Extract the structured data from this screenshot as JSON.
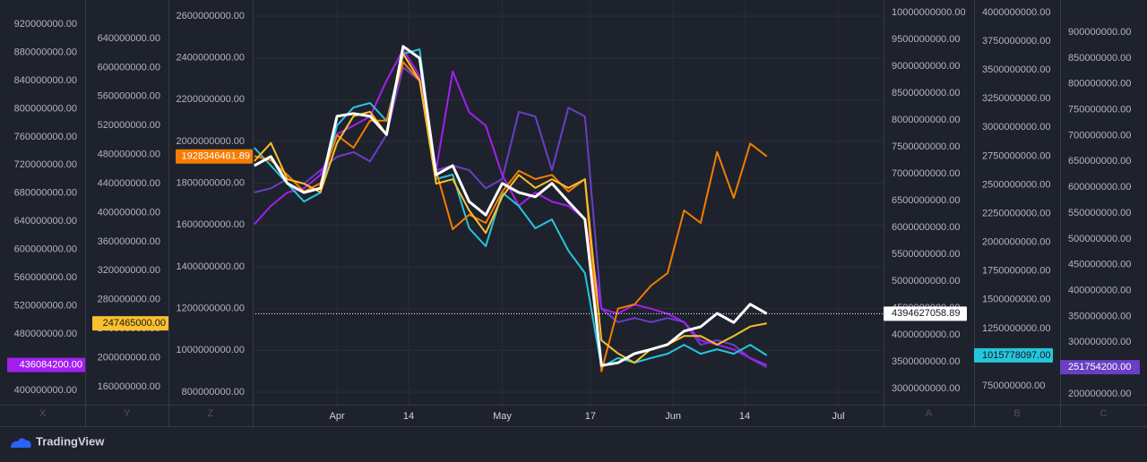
{
  "chart_data": {
    "type": "line",
    "x": [
      76,
      79,
      82,
      85,
      88,
      91,
      94,
      97,
      100,
      103,
      106,
      109,
      112,
      115,
      118,
      121,
      124,
      127,
      130,
      133,
      136,
      139,
      142,
      145,
      148,
      151,
      154,
      157,
      160,
      163,
      166,
      169
    ],
    "xlim": [
      75.7,
      190.2
    ],
    "xticks": [
      {
        "value": 91,
        "label": "Apr"
      },
      {
        "value": 104,
        "label": "14"
      },
      {
        "value": 121,
        "label": "May"
      },
      {
        "value": 137,
        "label": "17"
      },
      {
        "value": 152,
        "label": "Jun"
      },
      {
        "value": 165,
        "label": "14"
      },
      {
        "value": 182,
        "label": "Jul"
      }
    ],
    "grid": true,
    "grid_axis": "Z",
    "axes": [
      {
        "label": "X",
        "side": "left",
        "lim": [
          379700000,
          944200000
        ],
        "ticks": [
          {
            "value": 920000000,
            "label": "920000000.00"
          },
          {
            "value": 880000000,
            "label": "880000000.00"
          },
          {
            "value": 840000000,
            "label": "840000000.00"
          },
          {
            "value": 800000000,
            "label": "800000000.00"
          },
          {
            "value": 760000000,
            "label": "760000000.00"
          },
          {
            "value": 720000000,
            "label": "720000000.00"
          },
          {
            "value": 680000000,
            "label": "680000000.00"
          },
          {
            "value": 640000000,
            "label": "640000000.00"
          },
          {
            "value": 600000000,
            "label": "600000000.00"
          },
          {
            "value": 560000000,
            "label": "560000000.00"
          },
          {
            "value": 520000000,
            "label": "520000000.00"
          },
          {
            "value": 480000000,
            "label": "480000000.00"
          },
          {
            "value": 440000000,
            "label": "440000000.00"
          },
          {
            "value": 400000000,
            "label": "400000000.00"
          }
        ]
      },
      {
        "label": "Y",
        "side": "left",
        "lim": [
          135300000,
          683200000
        ],
        "ticks": [
          {
            "value": 640000000,
            "label": "640000000.00"
          },
          {
            "value": 600000000,
            "label": "600000000.00"
          },
          {
            "value": 560000000,
            "label": "560000000.00"
          },
          {
            "value": 520000000,
            "label": "520000000.00"
          },
          {
            "value": 480000000,
            "label": "480000000.00"
          },
          {
            "value": 440000000,
            "label": "440000000.00"
          },
          {
            "value": 400000000,
            "label": "400000000.00"
          },
          {
            "value": 360000000,
            "label": "360000000.00"
          },
          {
            "value": 320000000,
            "label": "320000000.00"
          },
          {
            "value": 280000000,
            "label": "280000000.00"
          },
          {
            "value": 240000000,
            "label": "240000000.00"
          },
          {
            "value": 200000000,
            "label": "200000000.00"
          },
          {
            "value": 160000000,
            "label": "160000000.00"
          }
        ]
      },
      {
        "label": "Z",
        "side": "left",
        "lim": [
          740000000,
          2642900000
        ],
        "ticks": [
          {
            "value": 2600000000,
            "label": "2600000000.00"
          },
          {
            "value": 2400000000,
            "label": "2400000000.00"
          },
          {
            "value": 2200000000,
            "label": "2200000000.00"
          },
          {
            "value": 2000000000,
            "label": "2000000000.00"
          },
          {
            "value": 1800000000,
            "label": "1800000000.00"
          },
          {
            "value": 1600000000,
            "label": "1600000000.00"
          },
          {
            "value": 1400000000,
            "label": "1400000000.00"
          },
          {
            "value": 1200000000,
            "label": "1200000000.00"
          },
          {
            "value": 1000000000,
            "label": "1000000000.00"
          },
          {
            "value": 800000000,
            "label": "800000000.00"
          }
        ]
      },
      {
        "label": "A",
        "side": "right",
        "lim": [
          2700000000,
          10100000000
        ],
        "ticks": [
          {
            "value": 10000000000,
            "label": "10000000000.00"
          },
          {
            "value": 9500000000,
            "label": "9500000000.00"
          },
          {
            "value": 9000000000,
            "label": "9000000000.00"
          },
          {
            "value": 8500000000,
            "label": "8500000000.00"
          },
          {
            "value": 8000000000,
            "label": "8000000000.00"
          },
          {
            "value": 7500000000,
            "label": "7500000000.00"
          },
          {
            "value": 7000000000,
            "label": "7000000000.00"
          },
          {
            "value": 6500000000,
            "label": "6500000000.00"
          },
          {
            "value": 6000000000,
            "label": "6000000000.00"
          },
          {
            "value": 5500000000,
            "label": "5500000000.00"
          },
          {
            "value": 5000000000,
            "label": "5000000000.00"
          },
          {
            "value": 4500000000,
            "label": "4500000000.00"
          },
          {
            "value": 4000000000,
            "label": "4000000000.00"
          },
          {
            "value": 3500000000,
            "label": "3500000000.00"
          },
          {
            "value": 3000000000,
            "label": "3000000000.00"
          }
        ]
      },
      {
        "label": "B",
        "side": "right",
        "lim": [
          586300000,
          4046800000
        ],
        "ticks": [
          {
            "value": 4000000000,
            "label": "4000000000.00"
          },
          {
            "value": 3750000000,
            "label": "3750000000.00"
          },
          {
            "value": 3500000000,
            "label": "3500000000.00"
          },
          {
            "value": 3250000000,
            "label": "3250000000.00"
          },
          {
            "value": 3000000000,
            "label": "3000000000.00"
          },
          {
            "value": 2750000000,
            "label": "2750000000.00"
          },
          {
            "value": 2500000000,
            "label": "2500000000.00"
          },
          {
            "value": 2250000000,
            "label": "2250000000.00"
          },
          {
            "value": 2000000000,
            "label": "2000000000.00"
          },
          {
            "value": 1750000000,
            "label": "1750000000.00"
          },
          {
            "value": 1500000000,
            "label": "1500000000.00"
          },
          {
            "value": 1250000000,
            "label": "1250000000.00"
          },
          {
            "value": 1000000000,
            "label": "1000000000.00"
          },
          {
            "value": 750000000,
            "label": "750000000.00"
          }
        ]
      },
      {
        "label": "C",
        "side": "right",
        "lim": [
          179200000,
          948500000
        ],
        "ticks": [
          {
            "value": 900000000,
            "label": "900000000.00"
          },
          {
            "value": 850000000,
            "label": "850000000.00"
          },
          {
            "value": 800000000,
            "label": "800000000.00"
          },
          {
            "value": 750000000,
            "label": "750000000.00"
          },
          {
            "value": 700000000,
            "label": "700000000.00"
          },
          {
            "value": 650000000,
            "label": "650000000.00"
          },
          {
            "value": 600000000,
            "label": "600000000.00"
          },
          {
            "value": 550000000,
            "label": "550000000.00"
          },
          {
            "value": 500000000,
            "label": "500000000.00"
          },
          {
            "value": 450000000,
            "label": "450000000.00"
          },
          {
            "value": 400000000,
            "label": "400000000.00"
          },
          {
            "value": 350000000,
            "label": "350000000.00"
          },
          {
            "value": 300000000,
            "label": "300000000.00"
          },
          {
            "value": 250000000,
            "label": "250000000.00"
          },
          {
            "value": 200000000,
            "label": "200000000.00"
          }
        ]
      }
    ],
    "series": [
      {
        "axis": "C",
        "color": "#6a3fc4",
        "values": [
          590000000,
          598000000,
          616000000,
          607000000,
          633000000,
          659000000,
          668000000,
          650000000,
          702000000,
          832000000,
          806000000,
          633000000,
          642000000,
          633000000,
          598000000,
          616000000,
          746000000,
          737000000,
          633000000,
          754000000,
          737000000,
          365000000,
          339000000,
          347000000,
          339000000,
          347000000,
          339000000,
          295000000,
          304000000,
          295000000,
          269000000,
          251754200
        ],
        "value_labels": [
          null,
          null,
          null,
          null,
          null,
          null,
          null,
          null,
          null,
          null,
          null,
          null,
          null,
          null,
          null,
          null,
          null,
          null,
          null,
          null,
          null,
          null,
          null,
          null,
          null,
          null,
          null,
          null,
          null,
          null,
          null,
          "251754200.00"
        ]
      },
      {
        "axis": "X",
        "color": "#a31ff0",
        "values": [
          636000000,
          662000000,
          681000000,
          687000000,
          706000000,
          764000000,
          776000000,
          789000000,
          840000000,
          884000000,
          846000000,
          713000000,
          853000000,
          795000000,
          776000000,
          706000000,
          662000000,
          681000000,
          668000000,
          662000000,
          643000000,
          516000000,
          509000000,
          522000000,
          516000000,
          509000000,
          497000000,
          471000000,
          465000000,
          458000000,
          446000000,
          436084200
        ],
        "value_labels": [
          null,
          null,
          null,
          null,
          null,
          null,
          null,
          null,
          null,
          null,
          null,
          null,
          null,
          null,
          null,
          null,
          null,
          null,
          null,
          null,
          null,
          null,
          null,
          null,
          null,
          null,
          null,
          null,
          null,
          null,
          null,
          "436084200.00"
        ]
      },
      {
        "axis": "B",
        "color": "#26c6da",
        "values": [
          2823000000,
          2667000000,
          2511000000,
          2355000000,
          2433000000,
          3018000000,
          3174000000,
          3213000000,
          3057000000,
          3641000000,
          3680000000,
          2550000000,
          2589000000,
          2122000000,
          1966000000,
          2433000000,
          2316000000,
          2122000000,
          2200000000,
          1927000000,
          1732000000,
          914000000,
          992000000,
          953000000,
          992000000,
          1030000000,
          1108000000,
          1030000000,
          1069000000,
          1030000000,
          1108000000,
          1015778097
        ],
        "value_labels": [
          null,
          null,
          null,
          null,
          null,
          null,
          null,
          null,
          null,
          null,
          null,
          null,
          null,
          null,
          null,
          null,
          null,
          null,
          null,
          null,
          null,
          null,
          null,
          null,
          null,
          null,
          null,
          null,
          null,
          null,
          null,
          "1015778097.00"
        ]
      },
      {
        "axis": "Z",
        "color": "#f57c00",
        "values": [
          1930000000,
          1910000000,
          1840000000,
          1760000000,
          1800000000,
          2030000000,
          1970000000,
          2100000000,
          2100000000,
          2380000000,
          2290000000,
          1860000000,
          1580000000,
          1650000000,
          1610000000,
          1760000000,
          1860000000,
          1820000000,
          1840000000,
          1760000000,
          1820000000,
          900000000,
          1200000000,
          1220000000,
          1310000000,
          1370000000,
          1670000000,
          1610000000,
          1950000000,
          1730000000,
          1990000000,
          1928346461.89
        ],
        "value_labels": [
          null,
          null,
          null,
          null,
          null,
          null,
          null,
          null,
          null,
          null,
          null,
          null,
          null,
          null,
          null,
          null,
          null,
          null,
          null,
          null,
          null,
          null,
          null,
          null,
          null,
          null,
          null,
          null,
          null,
          null,
          null,
          "1928346461.89"
        ]
      },
      {
        "axis": "Y",
        "color": "#fbc02d",
        "values": [
          471000000,
          496000000,
          446000000,
          440000000,
          428000000,
          496000000,
          533000000,
          539000000,
          508000000,
          619000000,
          582000000,
          440000000,
          446000000,
          403000000,
          372000000,
          422000000,
          452000000,
          434000000,
          446000000,
          434000000,
          446000000,
          224000000,
          206000000,
          193000000,
          212000000,
          218000000,
          230000000,
          230000000,
          218000000,
          230000000,
          243000000,
          247465000
        ],
        "value_labels": [
          null,
          null,
          null,
          null,
          null,
          null,
          null,
          null,
          null,
          null,
          null,
          null,
          null,
          null,
          null,
          null,
          null,
          null,
          null,
          null,
          null,
          null,
          null,
          null,
          null,
          null,
          null,
          null,
          null,
          null,
          null,
          "247465000.00"
        ]
      },
      {
        "axis": "A",
        "color": "#ffffff",
        "price_line": true,
        "values": [
          7150000000,
          7320000000,
          6820000000,
          6650000000,
          6730000000,
          8070000000,
          8120000000,
          8070000000,
          7730000000,
          9370000000,
          9150000000,
          6980000000,
          7150000000,
          6480000000,
          6230000000,
          6820000000,
          6650000000,
          6570000000,
          6820000000,
          6480000000,
          6150000000,
          3430000000,
          3480000000,
          3650000000,
          3730000000,
          3820000000,
          4070000000,
          4150000000,
          4400000000,
          4230000000,
          4570000000,
          4394627058.89
        ],
        "value_labels": [
          null,
          null,
          null,
          null,
          null,
          null,
          null,
          null,
          null,
          null,
          null,
          null,
          null,
          null,
          null,
          null,
          null,
          null,
          null,
          null,
          null,
          null,
          null,
          null,
          null,
          null,
          null,
          null,
          null,
          null,
          null,
          "4394627058.89"
        ]
      }
    ],
    "brand": "TradingView"
  }
}
